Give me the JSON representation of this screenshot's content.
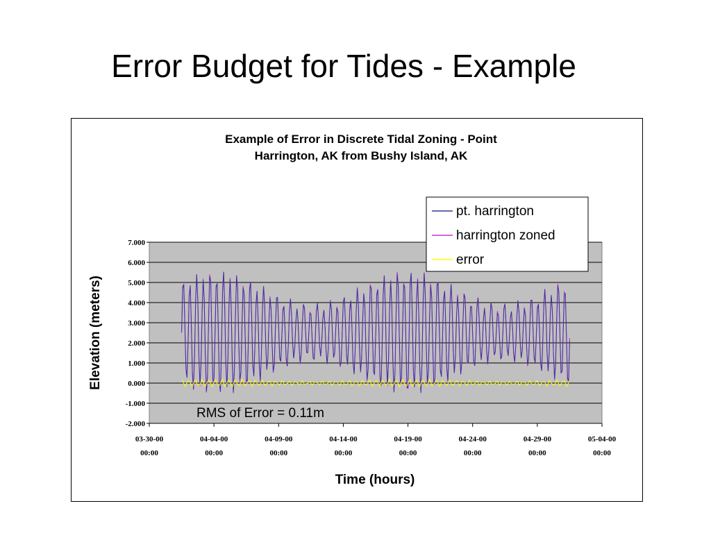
{
  "slide": {
    "title": "Error Budget for Tides - Example"
  },
  "chart_data": {
    "type": "line",
    "title_lines": [
      "Example of Error in Discrete Tidal Zoning - Point",
      "Harrington, AK from Bushy Island, AK"
    ],
    "xlabel": "Time (hours)",
    "ylabel": "Elevation (meters)",
    "ylim": [
      -2.0,
      7.0
    ],
    "y_ticks": [
      "7.000",
      "6.000",
      "5.000",
      "4.000",
      "3.000",
      "2.000",
      "1.000",
      "0.000",
      "-1.000",
      "-2.000"
    ],
    "x_ticks": [
      [
        "03-30-00",
        "00:00"
      ],
      [
        "04-04-00",
        "00:00"
      ],
      [
        "04-09-00",
        "00:00"
      ],
      [
        "04-14-00",
        "00:00"
      ],
      [
        "04-19-00",
        "00:00"
      ],
      [
        "04-24-00",
        "00:00"
      ],
      [
        "04-29-00",
        "00:00"
      ],
      [
        "05-04-00",
        "00:00"
      ]
    ],
    "xlim": [
      "2000-03-30 00:00",
      "2000-05-04 00:00"
    ],
    "x_range": [
      "2000-04-01 12:00",
      "2000-05-01 12:00"
    ],
    "sampling_hours": 2,
    "semidiurnal_period_hours": 12.42,
    "grid": "horizontal",
    "plot_background": "#c0c0c0",
    "legend_position": "top-right",
    "annotation": "RMS of Error = 0.11m",
    "series": [
      {
        "name": "pt. harrington",
        "color": "#333399",
        "mean_level": 2.5,
        "range_min": -0.7,
        "range_max": 5.6
      },
      {
        "name": "harrington zoned",
        "color": "#cc33cc",
        "mean_level": 2.5,
        "range_min": -0.7,
        "range_max": 5.7
      },
      {
        "name": "error",
        "color": "#ffff00",
        "mean_level": 0.0,
        "range_min": -0.25,
        "range_max": 0.25,
        "rms": 0.11
      }
    ]
  }
}
